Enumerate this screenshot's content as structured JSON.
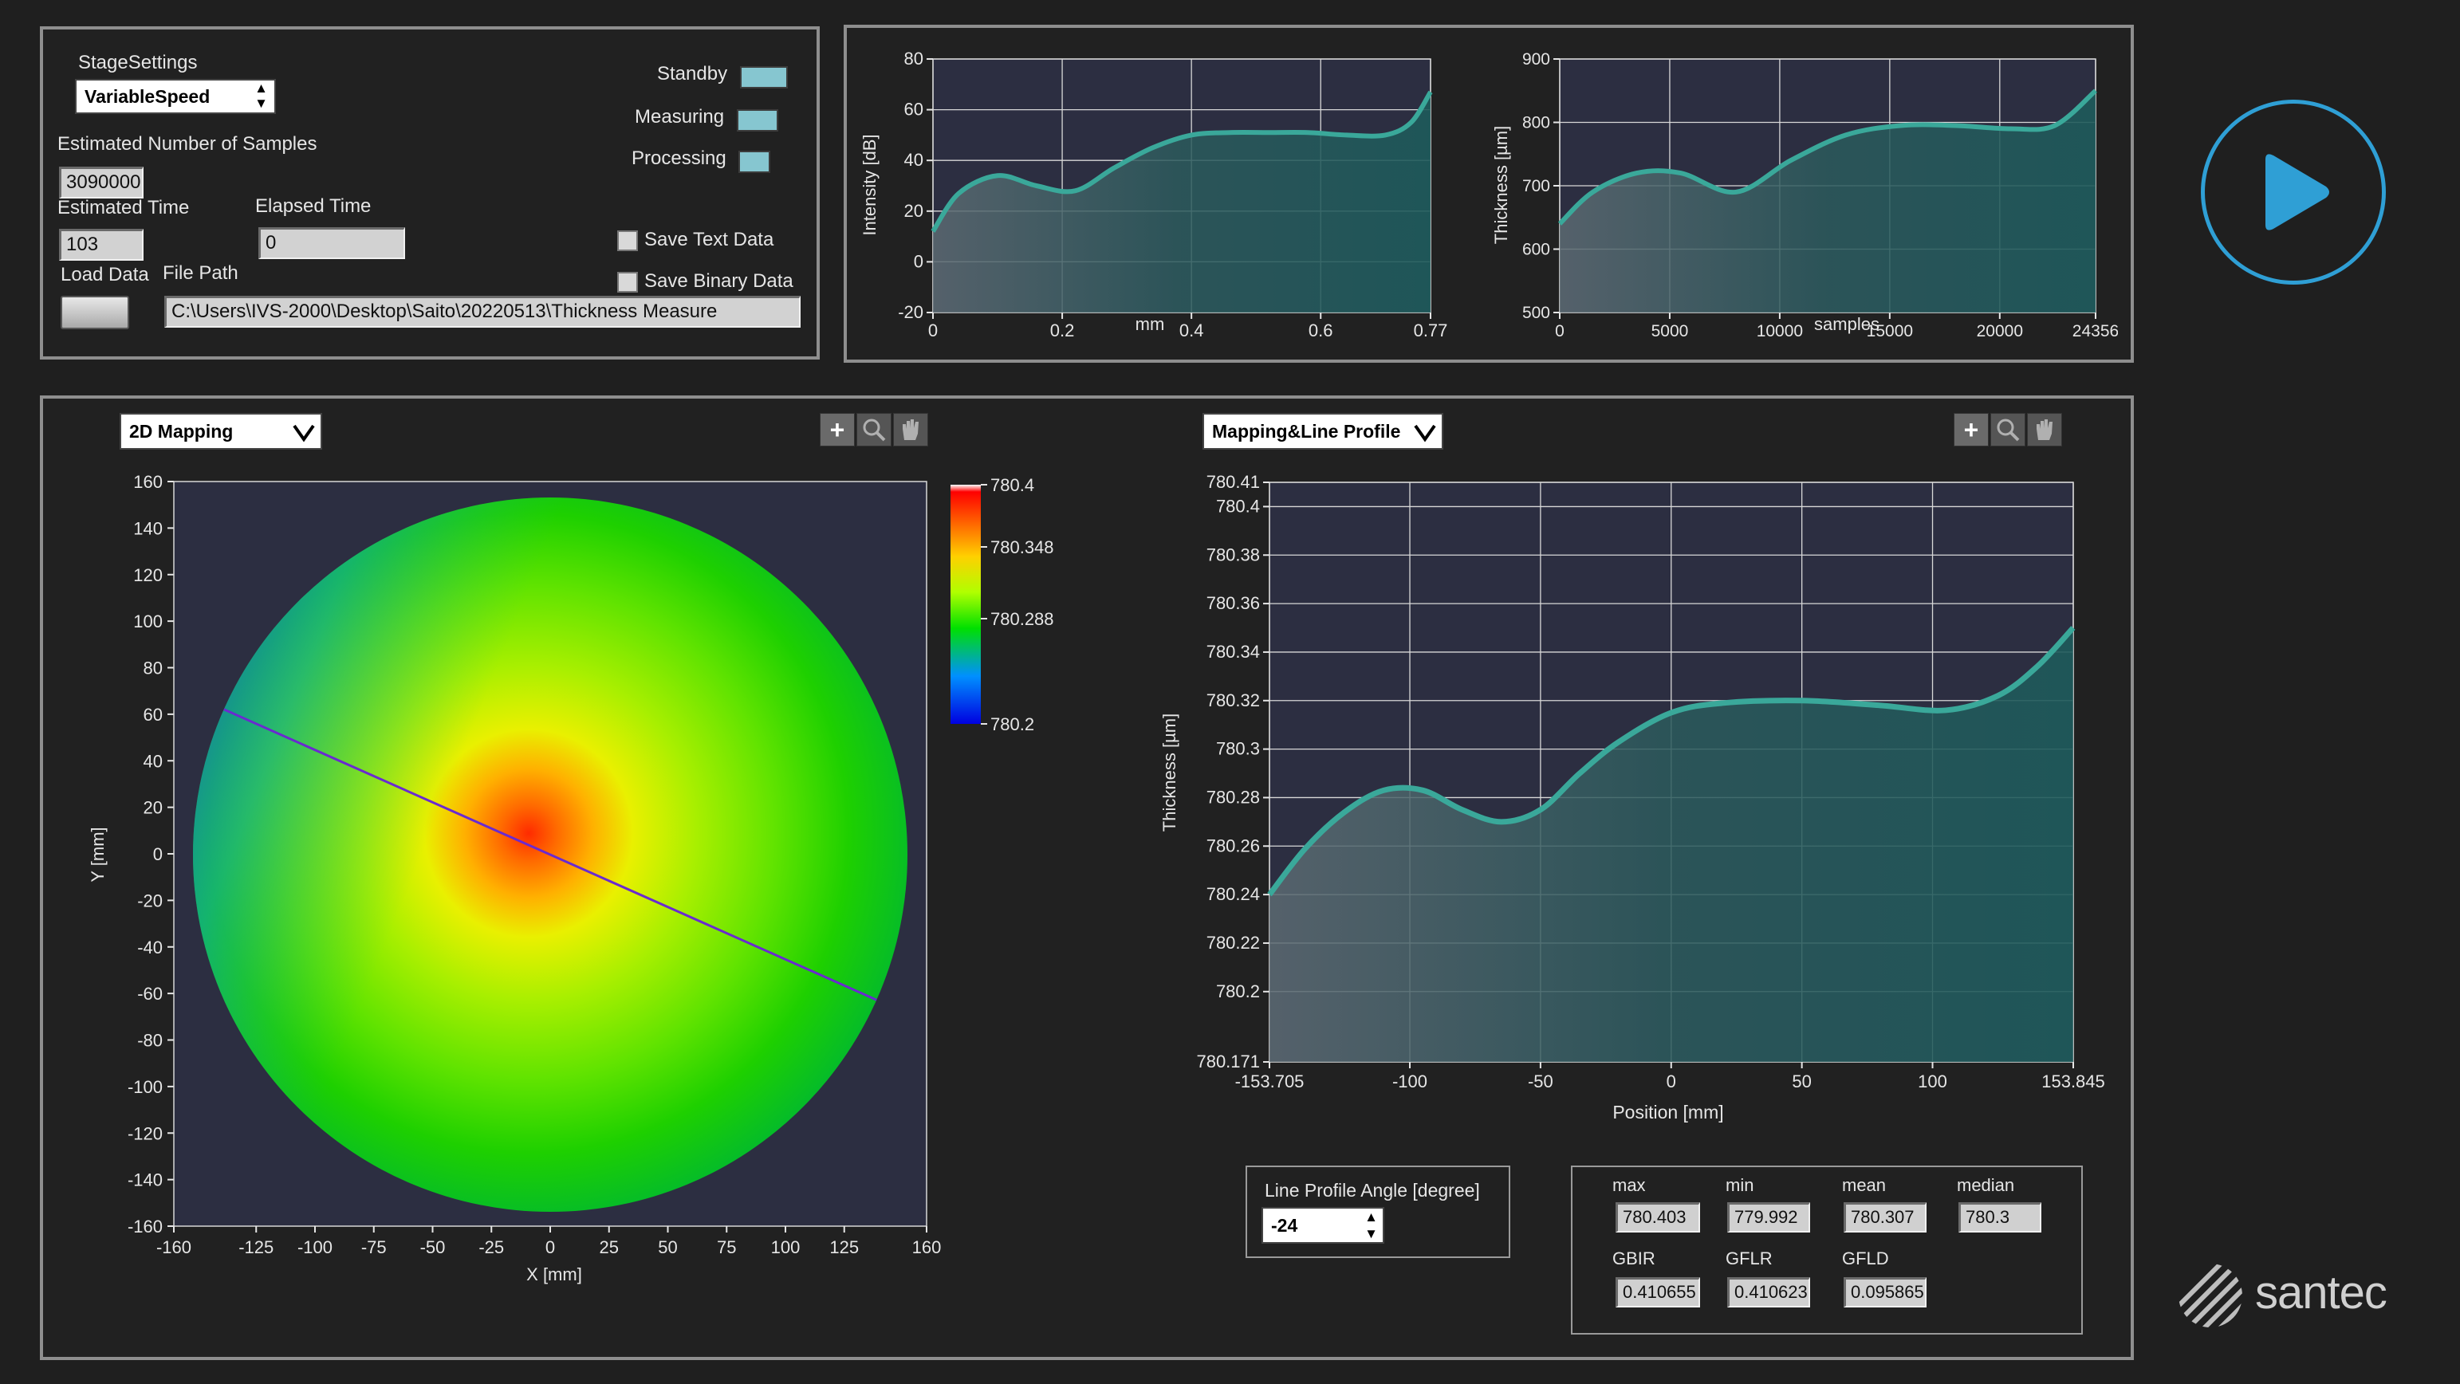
{
  "stage": {
    "settings_label": "StageSettings",
    "settings_value": "VariableSpeed",
    "est_samples_label": "Estimated Number of Samples",
    "est_samples_value": "3090000",
    "est_time_label": "Estimated Time",
    "est_time_value": "103",
    "elapsed_label": "Elapsed Time",
    "elapsed_value": "0",
    "load_data_label": "Load Data",
    "file_path_label": "File Path",
    "file_path_value": "C:\\Users\\IVS-2000\\Desktop\\Saito\\20220513\\Thickness Measure",
    "standby_label": "Standby",
    "measuring_label": "Measuring",
    "processing_label": "Processing",
    "save_text_label": "Save Text Data",
    "save_binary_label": "Save Binary Data",
    "indicator_color": "#86c6d0"
  },
  "colors": {
    "plot_bg": "#2c2e41",
    "curve": "#3aa89a",
    "accent_blue": "#2f9fd5"
  },
  "mapping": {
    "mode_value": "2D Mapping",
    "profile_mode_value": "Mapping&Line Profile",
    "angle_label": "Line Profile Angle [degree]",
    "angle_value": "-24"
  },
  "stats": {
    "max_label": "max",
    "max_value": "780.403",
    "min_label": "min",
    "min_value": "779.992",
    "mean_label": "mean",
    "mean_value": "780.307",
    "median_label": "median",
    "median_value": "780.3",
    "gbir_label": "GBIR",
    "gbir_value": "0.410655",
    "gflr_label": "GFLR",
    "gflr_value": "0.410623",
    "gfld_label": "GFLD",
    "gfld_value": "0.095865"
  },
  "brand": "santec",
  "chart_data": [
    {
      "type": "area",
      "xlabel": "mm",
      "ylabel": "Intensity [dB]",
      "xlim": [
        0,
        0.77
      ],
      "ylim": [
        -20,
        80
      ],
      "x_ticks": [
        "0",
        "0.2",
        "0.4",
        "0.6",
        "0.77"
      ],
      "y_ticks": [
        "80",
        "60",
        "40",
        "20",
        "0",
        "-20"
      ],
      "x": [
        0,
        0.04,
        0.1,
        0.16,
        0.22,
        0.28,
        0.34,
        0.4,
        0.46,
        0.52,
        0.58,
        0.64,
        0.7,
        0.74,
        0.77
      ],
      "y": [
        12,
        27,
        34,
        30,
        28,
        37,
        45,
        50,
        51,
        51,
        51,
        50,
        50,
        55,
        67
      ]
    },
    {
      "type": "area",
      "xlabel": "samples",
      "ylabel": "Thickness [µm]",
      "xlim": [
        0,
        24356
      ],
      "ylim": [
        500,
        900
      ],
      "x_ticks": [
        "0",
        "5000",
        "10000",
        "15000",
        "20000",
        "24356"
      ],
      "y_ticks": [
        "900",
        "800",
        "700",
        "600",
        "500"
      ],
      "x": [
        0,
        1500,
        3500,
        5500,
        8000,
        10500,
        13000,
        15500,
        18000,
        20500,
        22500,
        24356
      ],
      "y": [
        640,
        690,
        720,
        720,
        690,
        740,
        780,
        795,
        795,
        790,
        795,
        850
      ]
    },
    {
      "type": "heatmap",
      "xlabel": "X [mm]",
      "ylabel": "Y [mm]",
      "xlim": [
        -160,
        160
      ],
      "ylim": [
        -160,
        160
      ],
      "x_ticks": [
        "-160",
        "-125",
        "-100",
        "-75",
        "-50",
        "-25",
        "0",
        "25",
        "50",
        "75",
        "100",
        "125",
        "160"
      ],
      "y_ticks": [
        "160",
        "140",
        "120",
        "100",
        "80",
        "60",
        "40",
        "20",
        "0",
        "-20",
        "-40",
        "-60",
        "-80",
        "-100",
        "-120",
        "-140",
        "-160"
      ],
      "colorbar_ticks": [
        "780.4",
        "780.348",
        "780.288",
        "780.2"
      ],
      "colorbar_range": [
        780.2,
        780.4
      ],
      "line_profile_angle": -24
    },
    {
      "type": "area",
      "xlabel": "Position [mm]",
      "ylabel": "Thickness [µm]",
      "xlim": [
        -153.705,
        153.845
      ],
      "ylim": [
        780.171,
        780.41
      ],
      "x_ticks": [
        "-153.705",
        "-100",
        "-50",
        "0",
        "50",
        "100",
        "153.845"
      ],
      "y_ticks": [
        "780.41",
        "780.4",
        "780.38",
        "780.36",
        "780.34",
        "780.32",
        "780.3",
        "780.28",
        "780.26",
        "780.24",
        "780.22",
        "780.2",
        "780.171"
      ],
      "x": [
        -153.7,
        -140,
        -125,
        -110,
        -95,
        -80,
        -65,
        -50,
        -35,
        -20,
        0,
        20,
        50,
        80,
        105,
        125,
        140,
        153.8
      ],
      "y": [
        780.24,
        780.259,
        780.274,
        780.283,
        780.283,
        780.275,
        780.27,
        780.275,
        780.29,
        780.303,
        780.315,
        780.319,
        780.32,
        780.318,
        780.316,
        780.322,
        780.334,
        780.35
      ]
    }
  ]
}
